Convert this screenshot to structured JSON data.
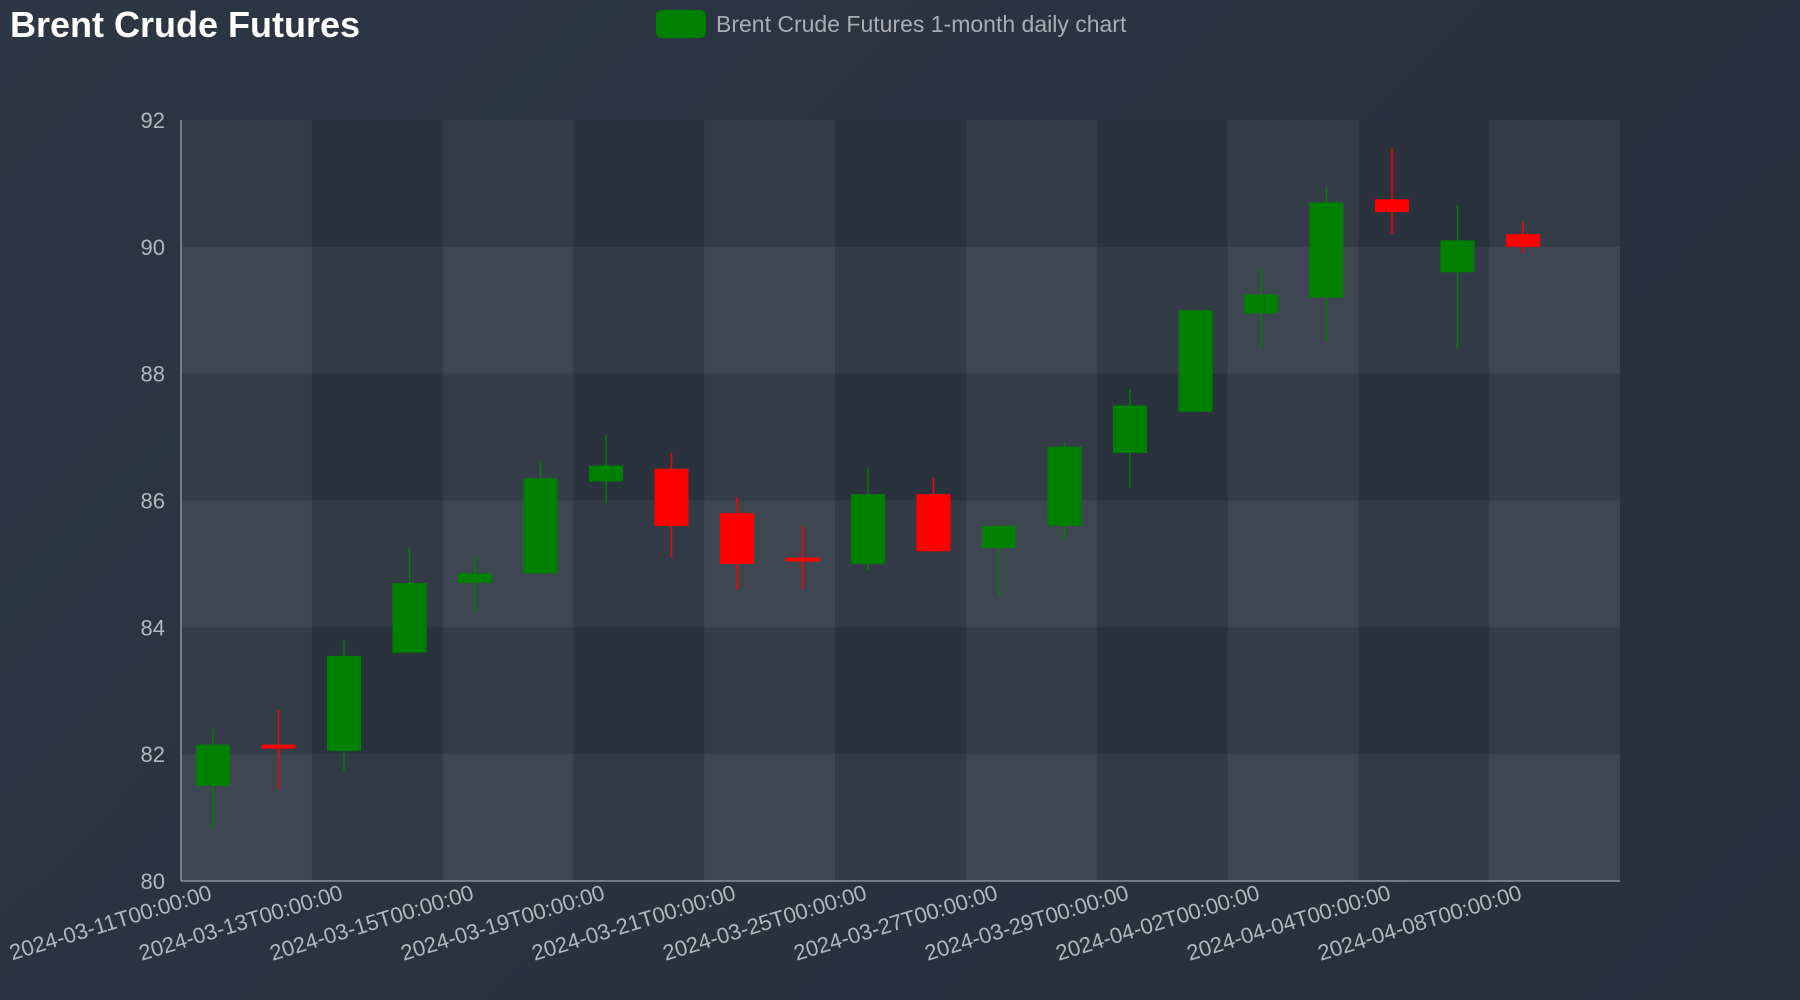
{
  "title": "Brent Crude Futures",
  "legend": {
    "label": "Brent Crude Futures 1-month daily chart"
  },
  "colors": {
    "up": "#008000",
    "down": "#ff0000",
    "background": "#28323d",
    "axis": "#8a9099"
  },
  "chart_data": {
    "type": "candlestick",
    "title": "Brent Crude Futures",
    "series": [
      {
        "name": "Brent Crude Futures 1-month daily chart"
      }
    ],
    "ylim": [
      80,
      92
    ],
    "yticks": [
      80,
      82,
      84,
      86,
      88,
      90,
      92
    ],
    "xtick_labels": [
      "2024-03-11T00:00:00",
      "2024-03-13T00:00:00",
      "2024-03-15T00:00:00",
      "2024-03-19T00:00:00",
      "2024-03-21T00:00:00",
      "2024-03-25T00:00:00",
      "2024-03-27T00:00:00",
      "2024-03-29T00:00:00",
      "2024-04-02T00:00:00",
      "2024-04-04T00:00:00",
      "2024-04-08T00:00:00"
    ],
    "grid": true,
    "legend_position": "top-center",
    "candles": [
      {
        "date": "2024-03-11",
        "open": 81.5,
        "high": 82.4,
        "low": 80.85,
        "close": 82.15
      },
      {
        "date": "2024-03-12",
        "open": 82.15,
        "high": 82.7,
        "low": 81.45,
        "close": 82.1
      },
      {
        "date": "2024-03-13",
        "open": 82.05,
        "high": 83.8,
        "low": 81.75,
        "close": 83.55
      },
      {
        "date": "2024-03-14",
        "open": 83.6,
        "high": 85.25,
        "low": null,
        "close": 84.7
      },
      {
        "date": "2024-03-15",
        "open": 84.7,
        "high": 85.1,
        "low": 84.25,
        "close": 84.85
      },
      {
        "date": "2024-03-18",
        "open": 84.85,
        "high": 86.6,
        "low": null,
        "close": 86.35
      },
      {
        "date": "2024-03-19",
        "open": 86.3,
        "high": 87.05,
        "low": 85.95,
        "close": 86.55
      },
      {
        "date": "2024-03-20",
        "open": 86.5,
        "high": 86.75,
        "low": 85.1,
        "close": 85.6
      },
      {
        "date": "2024-03-21",
        "open": 85.8,
        "high": 86.05,
        "low": 84.6,
        "close": 85.0
      },
      {
        "date": "2024-03-22",
        "open": 85.1,
        "high": 85.6,
        "low": 84.6,
        "close": 85.05
      },
      {
        "date": "2024-03-25",
        "open": 85.0,
        "high": 86.5,
        "low": 84.9,
        "close": 86.1
      },
      {
        "date": "2024-03-26",
        "open": 86.1,
        "high": 86.35,
        "low": null,
        "close": 85.2
      },
      {
        "date": "2024-03-27",
        "open": 85.25,
        "high": null,
        "low": 84.5,
        "close": 85.6
      },
      {
        "date": "2024-03-28",
        "open": 85.6,
        "high": 86.9,
        "low": 85.4,
        "close": 86.85
      },
      {
        "date": "2024-04-01",
        "open": 86.75,
        "high": 87.75,
        "low": 86.2,
        "close": 87.5
      },
      {
        "date": "2024-04-02",
        "open": 87.4,
        "high": null,
        "low": null,
        "close": 89.0
      },
      {
        "date": "2024-04-03",
        "open": 88.95,
        "high": 89.65,
        "low": 88.4,
        "close": 89.25
      },
      {
        "date": "2024-04-04",
        "open": 89.2,
        "high": 90.95,
        "low": 88.5,
        "close": 90.7
      },
      {
        "date": "2024-04-05",
        "open": 90.75,
        "high": 91.55,
        "low": 90.2,
        "close": 90.55
      },
      {
        "date": "2024-04-08",
        "open": 89.6,
        "high": 90.65,
        "low": 88.4,
        "close": 90.1
      },
      {
        "date": "2024-04-09",
        "open": 90.2,
        "high": 90.4,
        "low": 89.9,
        "close": 90.0
      }
    ]
  }
}
